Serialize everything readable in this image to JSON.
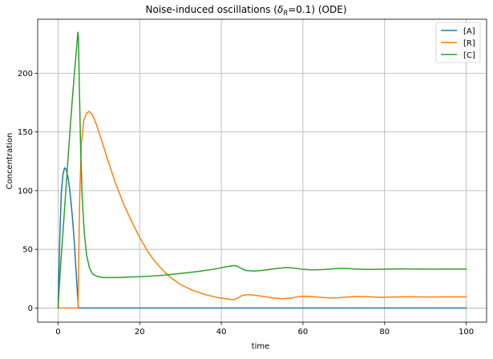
{
  "chart_data": {
    "type": "line",
    "title_main": "Noise-induced oscillations (",
    "title_delta": "δ",
    "title_sub": "R",
    "title_rest": "=0.1) (ODE)",
    "xlabel": "time",
    "ylabel": "Concentration",
    "xlim": [
      -5,
      105
    ],
    "ylim": [
      -12,
      246
    ],
    "xticks": [
      0,
      20,
      40,
      60,
      80,
      100
    ],
    "yticks": [
      0,
      50,
      100,
      150,
      200
    ],
    "grid": true,
    "legend_position": "top-right",
    "series": [
      {
        "name": "[A]",
        "color": "#1f77b4",
        "points": [
          [
            0,
            0
          ],
          [
            0.2,
            30
          ],
          [
            0.5,
            70
          ],
          [
            0.8,
            98
          ],
          [
            1.2,
            114
          ],
          [
            1.6,
            119.5
          ],
          [
            2.0,
            118
          ],
          [
            2.5,
            110
          ],
          [
            3.0,
            96
          ],
          [
            3.5,
            78
          ],
          [
            4.0,
            55
          ],
          [
            4.4,
            32
          ],
          [
            4.7,
            15
          ],
          [
            4.85,
            6
          ],
          [
            5.0,
            0
          ],
          [
            100,
            0
          ]
        ]
      },
      {
        "name": "[R]",
        "color": "#ff7f0e",
        "points": [
          [
            0,
            0
          ],
          [
            4.9,
            0
          ],
          [
            5.05,
            40
          ],
          [
            5.3,
            95
          ],
          [
            5.7,
            140
          ],
          [
            6.3,
            160
          ],
          [
            7.0,
            166
          ],
          [
            7.6,
            167.5
          ],
          [
            8.3,
            165
          ],
          [
            9,
            160
          ],
          [
            10,
            150
          ],
          [
            12,
            128
          ],
          [
            14,
            107
          ],
          [
            16,
            89
          ],
          [
            18,
            74
          ],
          [
            20,
            60
          ],
          [
            22,
            48
          ],
          [
            24,
            38.5
          ],
          [
            26,
            31
          ],
          [
            28,
            25
          ],
          [
            30,
            20
          ],
          [
            33,
            15
          ],
          [
            36,
            11.5
          ],
          [
            39,
            9
          ],
          [
            41,
            8
          ],
          [
            43,
            7
          ],
          [
            44,
            8.5
          ],
          [
            45,
            10.5
          ],
          [
            46.5,
            11.5
          ],
          [
            48,
            11
          ],
          [
            50,
            10
          ],
          [
            53,
            8.5
          ],
          [
            55,
            8
          ],
          [
            57,
            8.5
          ],
          [
            59,
            9.8
          ],
          [
            61,
            10
          ],
          [
            63,
            9.5
          ],
          [
            66,
            8.7
          ],
          [
            68,
            8.6
          ],
          [
            70,
            9.2
          ],
          [
            73,
            9.8
          ],
          [
            76,
            9.6
          ],
          [
            79,
            9.2
          ],
          [
            82,
            9.4
          ],
          [
            86,
            9.6
          ],
          [
            90,
            9.4
          ],
          [
            95,
            9.5
          ],
          [
            100,
            9.5
          ]
        ]
      },
      {
        "name": "[C]",
        "color": "#2ca02c",
        "points": [
          [
            0,
            0
          ],
          [
            0.5,
            30
          ],
          [
            1,
            55
          ],
          [
            1.5,
            80
          ],
          [
            2,
            105
          ],
          [
            2.5,
            130
          ],
          [
            3,
            155
          ],
          [
            3.5,
            178
          ],
          [
            4,
            200
          ],
          [
            4.5,
            220
          ],
          [
            4.85,
            235
          ],
          [
            5.0,
            230
          ],
          [
            5.2,
            190
          ],
          [
            5.5,
            140
          ],
          [
            5.9,
            95
          ],
          [
            6.4,
            65
          ],
          [
            7,
            45
          ],
          [
            7.7,
            34
          ],
          [
            8.5,
            29
          ],
          [
            9.5,
            27
          ],
          [
            11,
            26
          ],
          [
            14,
            26
          ],
          [
            18,
            26.5
          ],
          [
            22,
            27
          ],
          [
            26,
            28
          ],
          [
            30,
            29.5
          ],
          [
            34,
            31
          ],
          [
            38,
            33
          ],
          [
            41,
            35
          ],
          [
            43,
            36.2
          ],
          [
            44,
            35.5
          ],
          [
            45,
            33.5
          ],
          [
            46,
            32
          ],
          [
            48,
            31.5
          ],
          [
            50,
            32
          ],
          [
            53,
            33.5
          ],
          [
            56,
            34.5
          ],
          [
            58,
            34
          ],
          [
            60,
            33
          ],
          [
            62,
            32.5
          ],
          [
            65,
            32.8
          ],
          [
            68,
            33.6
          ],
          [
            70,
            33.8
          ],
          [
            73,
            33.2
          ],
          [
            76,
            32.9
          ],
          [
            80,
            33.1
          ],
          [
            84,
            33.4
          ],
          [
            88,
            33.2
          ],
          [
            92,
            33.1
          ],
          [
            96,
            33.2
          ],
          [
            100,
            33.2
          ]
        ]
      }
    ]
  }
}
